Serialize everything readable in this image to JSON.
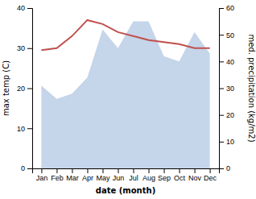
{
  "chart_data": {
    "type": "line",
    "categories": [
      "Jan",
      "Feb",
      "Mar",
      "Apr",
      "May",
      "Jun",
      "Jul",
      "Aug",
      "Sep",
      "Oct",
      "Nov",
      "Dec"
    ],
    "xlabel": "date (month)",
    "ylabel": "max temp (C)",
    "y2label": "med. precipitation (kg/m2)",
    "ylim": [
      0,
      40
    ],
    "yticks": [
      0,
      10,
      20,
      30,
      40
    ],
    "y2lim": [
      0,
      60
    ],
    "y2ticks": [
      0,
      10,
      20,
      30,
      40,
      50,
      60
    ],
    "grid": false,
    "series": [
      {
        "type": "area",
        "axis": "y2",
        "color": "#c5d5ea",
        "values": [
          31,
          26,
          28,
          34,
          52,
          45,
          55,
          55,
          42,
          40,
          51,
          43
        ]
      },
      {
        "type": "line",
        "color": "#c0504d",
        "values": [
          29.5,
          30.0,
          33.0,
          37.0,
          36.0,
          34.0,
          33.0,
          32.0,
          31.5,
          31.0,
          30.0,
          30.0
        ]
      }
    ]
  }
}
